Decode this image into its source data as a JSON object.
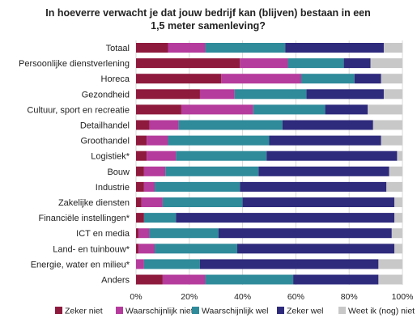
{
  "chart_data": {
    "type": "bar",
    "orientation": "horizontal",
    "stacked": "100%",
    "title_lines": [
      "In hoeverre verwacht je dat jouw bedrijf kan (blijven) bestaan in een",
      "1,5 meter samenleving?"
    ],
    "categories": [
      "Totaal",
      "Persoonlijke dienstverlening",
      "Horeca",
      "Gezondheid",
      "Cultuur, sport en recreatie",
      "Detailhandel",
      "Groothandel",
      "Logistiek*",
      "Bouw",
      "Industrie",
      "Zakelijke diensten",
      "Financiële instellingen*",
      "ICT en media",
      "Land- en tuinbouw*",
      "Energie, water en milieu*",
      "Anders"
    ],
    "series": [
      {
        "name": "Zeker niet",
        "color": "#8e1a3e",
        "values": [
          12,
          39,
          32,
          24,
          17,
          5,
          4,
          4,
          3,
          3,
          2,
          3,
          1,
          1,
          0,
          10
        ]
      },
      {
        "name": "Waarschijnlijk niet",
        "color": "#b53b9c",
        "values": [
          14,
          18,
          30,
          13,
          27,
          11,
          8,
          11,
          8,
          4,
          8,
          0,
          4,
          6,
          3,
          16
        ]
      },
      {
        "name": "Waarschijnlijk wel",
        "color": "#2f8a9a",
        "values": [
          30,
          21,
          20,
          27,
          27,
          39,
          38,
          34,
          35,
          32,
          30,
          12,
          26,
          31,
          21,
          33
        ]
      },
      {
        "name": "Zeker wel",
        "color": "#2e2a7c",
        "values": [
          37,
          10,
          10,
          29,
          16,
          34,
          42,
          49,
          49,
          55,
          57,
          82,
          65,
          59,
          67,
          32
        ]
      },
      {
        "name": "Weet ik (nog) niet",
        "color": "#c8c8c8",
        "values": [
          7,
          12,
          8,
          7,
          13,
          11,
          8,
          2,
          5,
          6,
          3,
          3,
          4,
          3,
          9,
          9
        ]
      }
    ],
    "x_ticks": [
      "0%",
      "20%",
      "40%",
      "60%",
      "80%",
      "100%"
    ],
    "xlim": [
      0,
      100
    ],
    "grid": true,
    "legend_position": "bottom"
  }
}
